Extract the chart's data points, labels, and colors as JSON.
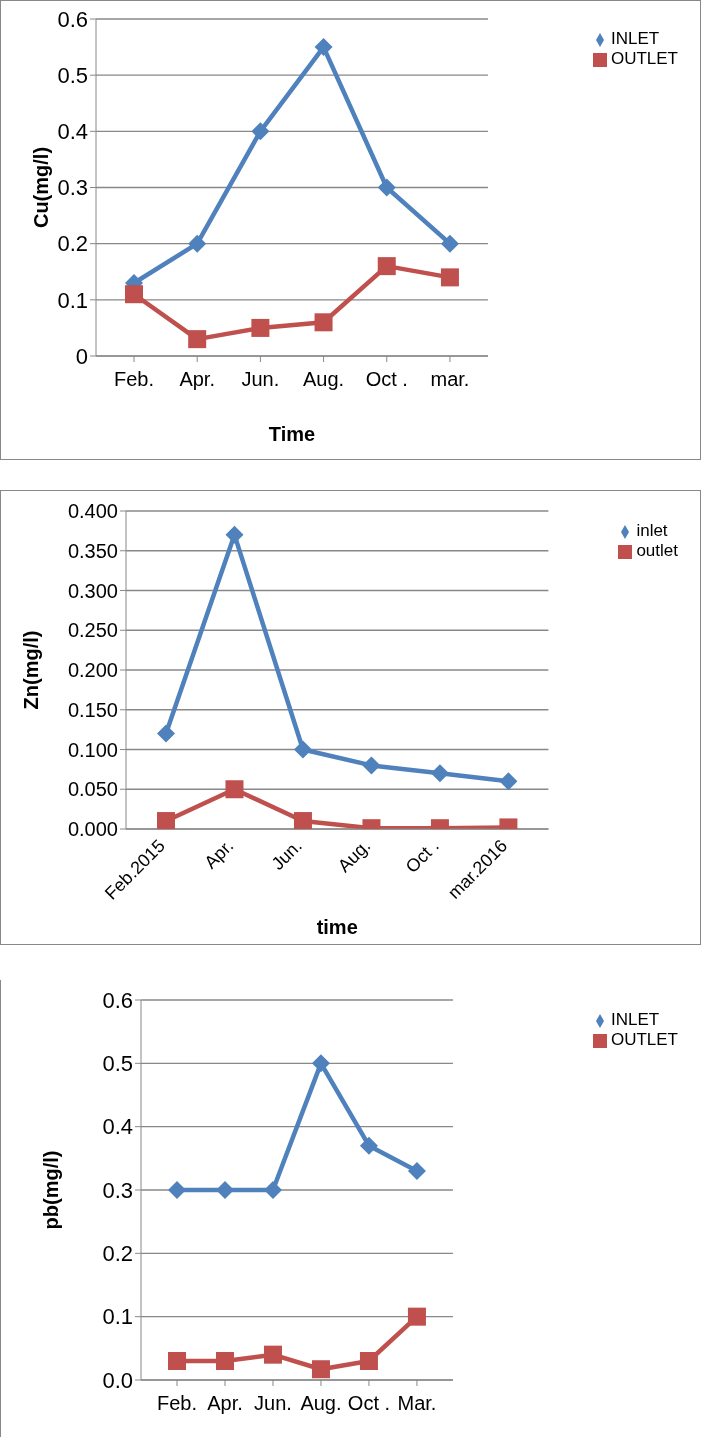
{
  "chart_data": [
    {
      "type": "line",
      "categories": [
        "Feb.",
        "Apr.",
        "Jun.",
        "Aug.",
        "Oct .",
        "mar."
      ],
      "xlabel": "Time",
      "ylabel": "Cu(mg/l)",
      "ylim": [
        0,
        0.6
      ],
      "yticks": [
        0,
        0.1,
        0.2,
        0.3,
        0.4,
        0.5,
        0.6
      ],
      "grid": "y",
      "legend": "right",
      "series": [
        {
          "name": "INLET",
          "color": "#4f81bd",
          "marker": "diamond",
          "values": [
            0.13,
            0.2,
            0.4,
            0.55,
            0.3,
            0.2
          ]
        },
        {
          "name": "OUTLET",
          "color": "#c0504d",
          "marker": "square",
          "values": [
            0.11,
            0.03,
            0.05,
            0.06,
            0.16,
            0.14
          ]
        }
      ]
    },
    {
      "type": "line",
      "categories": [
        "Feb.2015",
        "Apr.",
        "Jun.",
        "Aug.",
        "Oct .",
        "mar.2016"
      ],
      "xlabel": "time",
      "ylabel": "Zn(mg/l)",
      "ylim": [
        0,
        0.4
      ],
      "yticks": [
        {
          "value": 0,
          "label": "0.000"
        },
        {
          "value": 0.05,
          "label": "0.050"
        },
        {
          "value": 0.1,
          "label": "0.100"
        },
        {
          "value": 0.15,
          "label": "0.150"
        },
        {
          "value": 0.2,
          "label": "0.200"
        },
        {
          "value": 0.25,
          "label": "0.250"
        },
        {
          "value": 0.3,
          "label": "0.300"
        },
        {
          "value": 0.35,
          "label": "0.350"
        },
        {
          "value": 0.4,
          "label": "0.400"
        }
      ],
      "grid": "y",
      "legend": "top right",
      "series": [
        {
          "name": "inlet",
          "color": "#4f81bd",
          "marker": "diamond",
          "values": [
            0.12,
            0.37,
            0.1,
            0.08,
            0.07,
            0.06
          ]
        },
        {
          "name": "outlet",
          "color": "#c0504d",
          "marker": "square",
          "values": [
            0.01,
            0.05,
            0.01,
            0.001,
            0.001,
            0.002
          ]
        }
      ]
    },
    {
      "type": "line",
      "categories": [
        "Feb.",
        "Apr.",
        "Jun.",
        "Aug.",
        "Oct .",
        "Mar."
      ],
      "ylabel": "pb(mg/l)",
      "ylim": [
        0,
        0.6
      ],
      "yticks": [
        {
          "value": 0,
          "label": "0.0"
        },
        0.1,
        0.2,
        0.3,
        0.4,
        0.5,
        0.6
      ],
      "grid": "y",
      "legend": "right",
      "series": [
        {
          "name": "INLET",
          "color": "#4f81bd",
          "marker": "diamond",
          "values": [
            0.3,
            0.3,
            0.3,
            0.5,
            0.37,
            0.33
          ]
        },
        {
          "name": "OUTLET",
          "color": "#c0504d",
          "marker": "square",
          "values": [
            0.03,
            0.03,
            0.04,
            0.017,
            0.03,
            0.1
          ]
        }
      ]
    }
  ]
}
